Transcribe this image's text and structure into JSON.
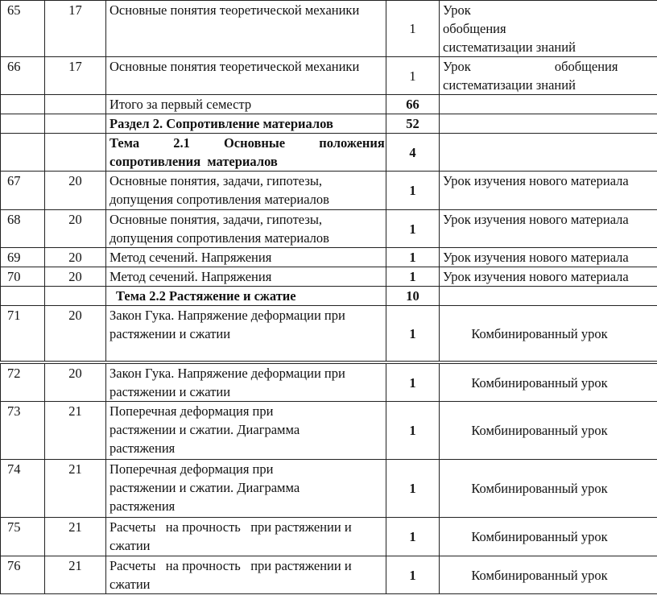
{
  "table1": {
    "rows": [
      {
        "num": "65",
        "week": "17",
        "topic": "Основные понятия теоретической механики",
        "hours": "1",
        "type_l1": "Урок обобщения",
        "type_l2": "систематизации знаний"
      },
      {
        "num": "66",
        "week": "17",
        "topic": "Основные понятия теоретической механики",
        "hours": "1",
        "type_l1": "Урок обобщения",
        "type_l2": "систематизации знаний"
      },
      {
        "num": "",
        "week": "",
        "topic": "Итого за первый семестр",
        "hours": "66",
        "type": ""
      },
      {
        "num": "",
        "week": "",
        "topic": "Раздел 2. Сопротивление материалов",
        "hours": "52",
        "type": ""
      },
      {
        "num": "",
        "week": "",
        "topic_l1": "Тема 2.1 Основные положения",
        "topic_l2": "сопротивления  материалов",
        "hours": "4",
        "type": ""
      },
      {
        "num": "67",
        "week": "20",
        "topic": "Основные понятия, задачи, гипотезы, допущения сопротивления материалов",
        "hours": "1",
        "type": "Урок изучения нового материала"
      },
      {
        "num": "68",
        "week": "20",
        "topic": "Основные понятия, задачи, гипотезы, допущения сопротивления материалов",
        "hours": "1",
        "type": "Урок изучения нового материала"
      },
      {
        "num": "69",
        "week": "20",
        "topic": "Метод сечений. Напряжения",
        "hours": "1",
        "type": "Урок изучения нового материала"
      },
      {
        "num": "70",
        "week": "20",
        "topic": "Метод сечений. Напряжения",
        "hours": "1",
        "type": "Урок изучения нового материала"
      },
      {
        "num": "",
        "week": "",
        "topic": "Тема 2.2 Растяжение и сжатие",
        "hours": "10",
        "type": ""
      },
      {
        "num": "71",
        "week": "20",
        "topic": "Закон Гука. Напряжение деформации при растяжении и сжатии",
        "hours": "1",
        "type": "Комбинированный урок"
      }
    ]
  },
  "table2": {
    "rows": [
      {
        "num": "72",
        "week": "20",
        "topic": "Закон Гука. Напряжение деформации при растяжении и сжатии",
        "hours": "1",
        "type": "Комбинированный урок"
      },
      {
        "num": "73",
        "week": "21",
        "topic": "Поперечная деформация при растяжении и сжатии.  Диаграмма растяжения",
        "hours": "1",
        "type": "Комбинированный урок"
      },
      {
        "num": "74",
        "week": "21",
        "topic": "Поперечная деформация при растяжении и сжатии.  Диаграмма растяжения",
        "hours": "1",
        "type": "Комбинированный урок"
      },
      {
        "num": "75",
        "week": "21",
        "topic": "Расчеты   на прочность   при растяжении и сжатии",
        "hours": "1",
        "type": "Комбинированный урок"
      },
      {
        "num": "76",
        "week": "21",
        "topic": "Расчеты   на прочность   при растяжении и сжатии",
        "hours": "1",
        "type": "Комбинированный урок"
      }
    ]
  }
}
